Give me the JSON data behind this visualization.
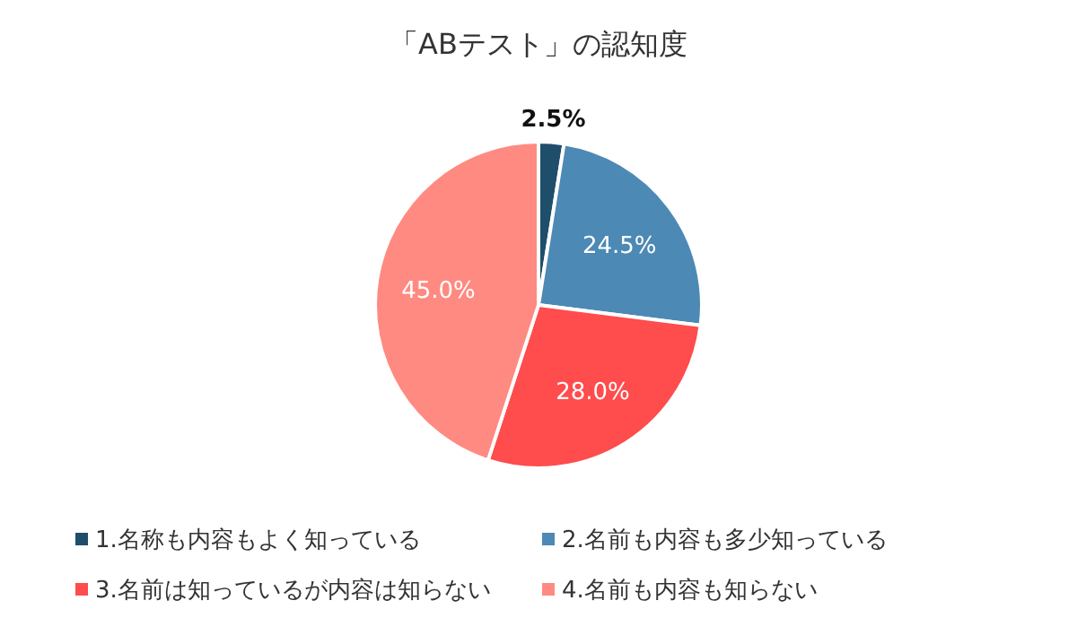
{
  "chart_data": {
    "type": "pie",
    "title": "「ABテスト」の認知度",
    "categories": [
      "1.名称も内容もよく知っている",
      "2.名前も内容も多少知っている",
      "3.名前は知っているが内容は知らない",
      "4.名前も内容も知らない"
    ],
    "values": [
      2.5,
      24.5,
      28.0,
      45.0
    ],
    "colors": [
      "#1f4e6b",
      "#4c89b5",
      "#ff4c4c",
      "#ff8a82"
    ],
    "value_labels": [
      "2.5%",
      "24.5%",
      "28.0%",
      "45.0%"
    ],
    "legend": "bottom"
  }
}
